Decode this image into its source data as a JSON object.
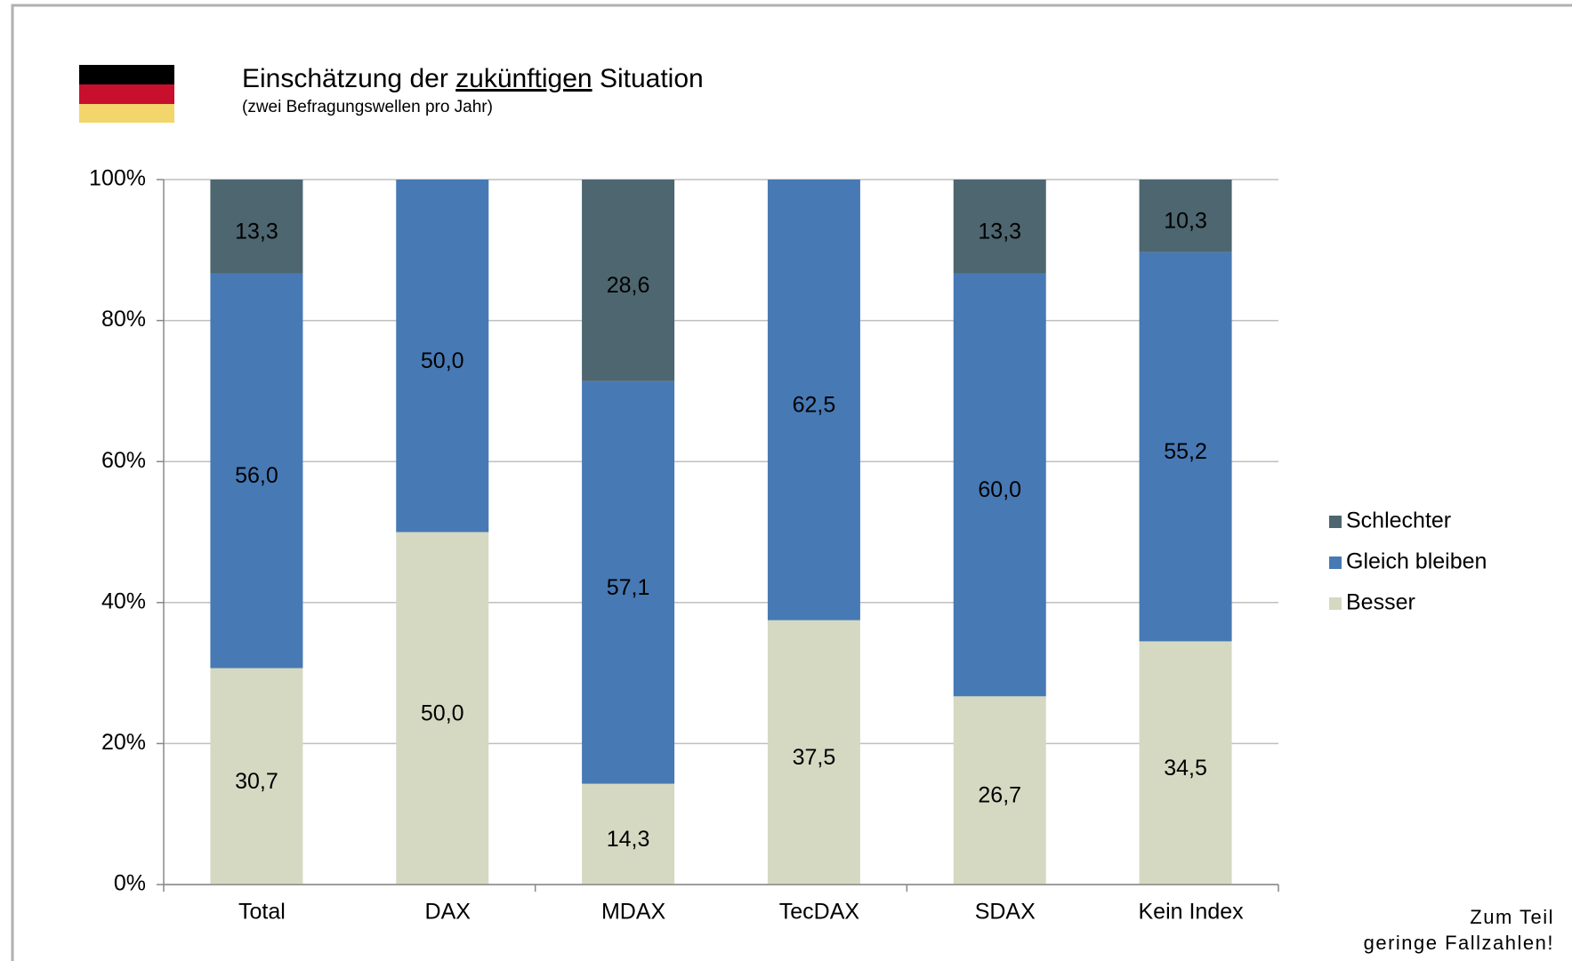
{
  "chart_data": {
    "type": "stacked_bar",
    "title_parts": [
      "Einschätzung der ",
      "zukünftigen",
      " Situation"
    ],
    "subtitle": "(zwei Befragungswellen pro Jahr)",
    "categories": [
      "Total",
      "DAX",
      "MDAX",
      "TecDAX",
      "SDAX",
      "Kein Index"
    ],
    "series": [
      {
        "name": "Besser",
        "color": "#d6d9c2",
        "label_color": "#000000",
        "values": [
          30.7,
          50.0,
          14.3,
          37.5,
          26.7,
          34.5
        ],
        "value_labels": [
          "30,7",
          "50,0",
          "14,3",
          "37,5",
          "26,7",
          "34,5"
        ]
      },
      {
        "name": "Gleich bleiben",
        "color": "#4779b4",
        "label_color": "#ffffff",
        "values": [
          56.0,
          50.0,
          57.1,
          62.5,
          60.0,
          55.2
        ],
        "value_labels": [
          "56,0",
          "50,0",
          "57,1",
          "62,5",
          "60,0",
          "55,2"
        ]
      },
      {
        "name": "Schlechter",
        "color": "#4d6670",
        "label_color": "#ffffff",
        "values": [
          13.3,
          null,
          28.6,
          null,
          13.3,
          10.3
        ],
        "value_labels": [
          "13,3",
          null,
          "28,6",
          null,
          "13,3",
          "10,3"
        ]
      }
    ],
    "ylim": [
      0,
      100
    ],
    "yticks": [
      {
        "value": 0,
        "label": "0%"
      },
      {
        "value": 20,
        "label": "20%"
      },
      {
        "value": 40,
        "label": "40%"
      },
      {
        "value": 60,
        "label": "60%"
      },
      {
        "value": 80,
        "label": "80%"
      },
      {
        "value": 100,
        "label": "100%"
      }
    ],
    "grid": true,
    "legend": "right",
    "annotation_lines": [
      "Zum Teil",
      "geringe Fallzahlen!"
    ]
  }
}
